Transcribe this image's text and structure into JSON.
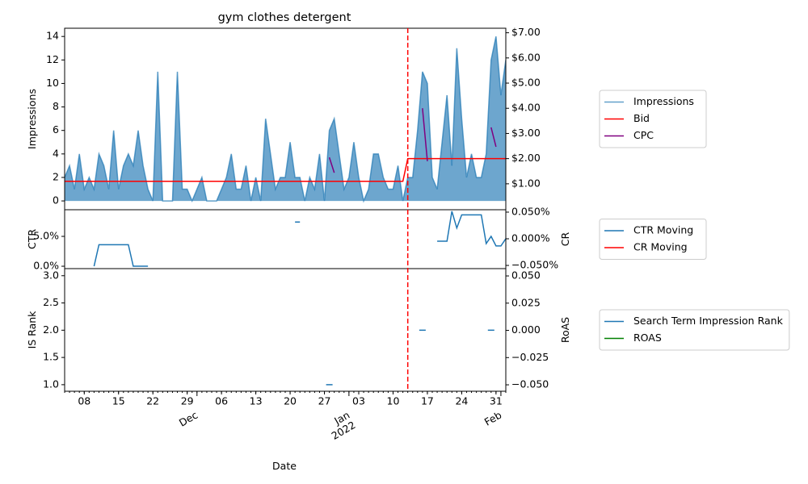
{
  "chart_data": [
    {
      "type": "area",
      "title": "gym clothes detergent",
      "ylabel": "Impressions",
      "xlim": [
        "2021-11-04",
        "2022-02-02"
      ],
      "ylim": [
        -0.75,
        14.7
      ],
      "yticks": [
        0,
        2,
        4,
        6,
        8,
        10,
        12,
        14
      ],
      "ytick_color": "blue",
      "y2lim": [
        -0.03,
        7.18
      ],
      "y2ticks": [
        {
          "value": 1,
          "label": "$1.00"
        },
        {
          "value": 2,
          "label": "$2.00"
        },
        {
          "value": 3,
          "label": "$3.00"
        },
        {
          "value": 4,
          "label": "$4.00"
        },
        {
          "value": 5,
          "label": "$5.00"
        },
        {
          "value": 6,
          "label": "$6.00"
        },
        {
          "value": 7,
          "label": "$7.00"
        }
      ],
      "y2tick_color": "red",
      "vline": "2022-01-13",
      "vline_color": "red",
      "legend": "outside right",
      "series": [
        {
          "name": "Impressions",
          "color": "#1f77b4",
          "fill": true,
          "x": [
            "2021-11-04",
            "2021-11-05",
            "2021-11-06",
            "2021-11-07",
            "2021-11-08",
            "2021-11-09",
            "2021-11-10",
            "2021-11-11",
            "2021-11-12",
            "2021-11-13",
            "2021-11-14",
            "2021-11-15",
            "2021-11-16",
            "2021-11-17",
            "2021-11-18",
            "2021-11-19",
            "2021-11-20",
            "2021-11-21",
            "2021-11-22",
            "2021-11-23",
            "2021-11-24",
            "2021-11-25",
            "2021-11-26",
            "2021-11-27",
            "2021-11-28",
            "2021-11-29",
            "2021-11-30",
            "2021-12-01",
            "2021-12-02",
            "2021-12-03",
            "2021-12-04",
            "2021-12-05",
            "2021-12-06",
            "2021-12-07",
            "2021-12-08",
            "2021-12-09",
            "2021-12-10",
            "2021-12-11",
            "2021-12-12",
            "2021-12-13",
            "2021-12-14",
            "2021-12-15",
            "2021-12-16",
            "2021-12-17",
            "2021-12-18",
            "2021-12-19",
            "2021-12-20",
            "2021-12-21",
            "2021-12-22",
            "2021-12-23",
            "2021-12-24",
            "2021-12-25",
            "2021-12-26",
            "2021-12-27",
            "2021-12-28",
            "2021-12-29",
            "2021-12-30",
            "2021-12-31",
            "2022-01-01",
            "2022-01-02",
            "2022-01-03",
            "2022-01-04",
            "2022-01-05",
            "2022-01-06",
            "2022-01-07",
            "2022-01-08",
            "2022-01-09",
            "2022-01-10",
            "2022-01-11",
            "2022-01-12",
            "2022-01-13",
            "2022-01-14",
            "2022-01-15",
            "2022-01-16",
            "2022-01-17",
            "2022-01-18",
            "2022-01-19",
            "2022-01-20",
            "2022-01-21",
            "2022-01-22",
            "2022-01-23",
            "2022-01-24",
            "2022-01-25",
            "2022-01-26",
            "2022-01-27",
            "2022-01-28",
            "2022-01-29",
            "2022-01-30",
            "2022-01-31",
            "2022-02-01",
            "2022-02-02"
          ],
          "values": [
            2,
            3,
            1,
            4,
            1,
            2,
            1,
            4,
            3,
            1,
            6,
            1,
            3,
            4,
            3,
            6,
            3,
            1,
            0,
            11,
            0,
            0,
            0,
            11,
            1,
            1,
            0,
            1,
            2,
            0,
            0,
            0,
            1,
            2,
            4,
            1,
            1,
            3,
            0,
            2,
            0,
            7,
            4,
            1,
            2,
            2,
            5,
            2,
            2,
            0,
            2,
            1,
            4,
            0,
            6,
            7,
            4,
            1,
            2,
            5,
            2,
            0,
            1,
            4,
            4,
            2,
            1,
            1,
            3,
            0,
            2,
            2,
            6,
            11,
            10,
            2,
            1,
            5,
            9,
            3,
            13,
            7,
            2,
            4,
            2,
            2,
            4,
            12,
            14,
            9,
            12
          ]
        },
        {
          "name": "Bid",
          "color": "red",
          "axis": "y2",
          "x": [
            "2021-11-04",
            "2022-01-12",
            "2022-01-13",
            "2022-02-02"
          ],
          "values": [
            1.1,
            1.1,
            2.0,
            2.0
          ]
        },
        {
          "name": "CPC",
          "color": "purple",
          "axis": "y2",
          "x": [
            "2021-12-28",
            "2021-12-29",
            "2021-12-30",
            "2022-01-16",
            "2022-01-17",
            "2022-01-18",
            "2022-01-30",
            "2022-01-31"
          ],
          "values": [
            2.05,
            1.44,
            null,
            4.0,
            1.9,
            null,
            3.24,
            2.47
          ]
        }
      ]
    },
    {
      "type": "line",
      "ylabel": "CTR",
      "y2label": "CR",
      "xlim": [
        "2021-11-04",
        "2022-02-02"
      ],
      "ylim": [
        -0.4,
        9.46
      ],
      "yticks": [
        {
          "value": 0,
          "label": "0.0%"
        },
        {
          "value": 5,
          "label": "5.0%"
        }
      ],
      "ytick_color": "blue",
      "y2lim": [
        -0.056,
        0.0545
      ],
      "y2ticks": [
        {
          "value": -0.05,
          "label": "−0.050%"
        },
        {
          "value": 0,
          "label": "0.000%"
        },
        {
          "value": 0.05,
          "label": "0.050%"
        }
      ],
      "y2tick_color": "red",
      "legend": "outside right",
      "series": [
        {
          "name": "CTR Moving",
          "color": "#1f77b4",
          "x": [
            "2021-11-10",
            "2021-11-11",
            "2021-11-12",
            "2021-11-13",
            "2021-11-14",
            "2021-11-15",
            "2021-11-16",
            "2021-11-17",
            "2021-11-18",
            "2021-11-19",
            "2021-11-20",
            "2021-11-21",
            "2021-11-22",
            "2021-12-21",
            "2021-12-22",
            "2021-12-23",
            "2022-01-19",
            "2022-01-20",
            "2022-01-21",
            "2022-01-22",
            "2022-01-23",
            "2022-01-24",
            "2022-01-25",
            "2022-01-26",
            "2022-01-27",
            "2022-01-28",
            "2022-01-29",
            "2022-01-30",
            "2022-01-31",
            "2022-02-01",
            "2022-02-02"
          ],
          "values": [
            0,
            3.6,
            3.6,
            3.6,
            3.6,
            3.6,
            3.6,
            3.6,
            0,
            0,
            0,
            0,
            null,
            7.4,
            7.4,
            null,
            4.2,
            4.2,
            4.2,
            9.2,
            6.4,
            8.6,
            8.6,
            8.6,
            8.6,
            8.6,
            3.8,
            5.0,
            3.4,
            3.4,
            4.6
          ]
        },
        {
          "name": "CR Moving",
          "color": "red",
          "axis": "y2",
          "x": [],
          "values": []
        }
      ]
    },
    {
      "type": "line",
      "ylabel": "IS Rank",
      "y2label": "RoAS",
      "xlabel": "Date",
      "xlim": [
        "2021-11-04",
        "2022-02-02"
      ],
      "ylim": [
        0.88,
        3.13
      ],
      "yticks": [
        {
          "value": 1,
          "label": "1.0"
        },
        {
          "value": 1.5,
          "label": "1.5"
        },
        {
          "value": 2,
          "label": "2.0"
        },
        {
          "value": 2.5,
          "label": "2.5"
        },
        {
          "value": 3,
          "label": "3.0"
        }
      ],
      "ytick_color": "blue",
      "y2lim": [
        -0.0559,
        0.0567
      ],
      "y2ticks": [
        {
          "value": -0.05,
          "label": "−0.050"
        },
        {
          "value": -0.025,
          "label": "−0.025"
        },
        {
          "value": 0,
          "label": "0.000"
        },
        {
          "value": 0.025,
          "label": "0.025"
        },
        {
          "value": 0.05,
          "label": "0.050"
        }
      ],
      "y2tick_color": "green",
      "legend": "outside right",
      "xticks": [
        {
          "value": "2021-11-08",
          "label": "08"
        },
        {
          "value": "2021-11-15",
          "label": "15"
        },
        {
          "value": "2021-11-22",
          "label": "22"
        },
        {
          "value": "2021-11-29",
          "label": "29"
        },
        {
          "value": "2021-12-06",
          "label": "06"
        },
        {
          "value": "2021-12-13",
          "label": "13"
        },
        {
          "value": "2021-12-20",
          "label": "20"
        },
        {
          "value": "2021-12-27",
          "label": "27"
        },
        {
          "value": "2022-01-03",
          "label": "03"
        },
        {
          "value": "2022-01-10",
          "label": "10"
        },
        {
          "value": "2022-01-17",
          "label": "17"
        },
        {
          "value": "2022-01-24",
          "label": "24"
        },
        {
          "value": "2022-01-31",
          "label": "31"
        }
      ],
      "xticks_major": [
        {
          "value": "2021-12-01",
          "label": "Dec"
        },
        {
          "value": "2022-01-01",
          "label": "Jan\n2022"
        },
        {
          "value": "2022-02-01",
          "label": "Feb"
        }
      ],
      "xticks_major_rotation": 30,
      "series": [
        {
          "name": "Search Term Impression Rank",
          "color": "#1f77b4",
          "marker": "_",
          "x": [
            "2021-12-28",
            "2022-01-16",
            "2022-01-30"
          ],
          "values": [
            1,
            2,
            2
          ]
        },
        {
          "name": "ROAS",
          "color": "green",
          "axis": "y2",
          "x": [],
          "values": []
        }
      ]
    }
  ]
}
